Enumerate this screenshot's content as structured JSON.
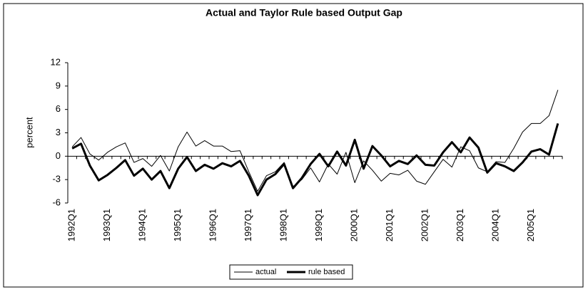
{
  "chart_data": {
    "type": "line",
    "title": "Actual and Taylor Rule based Output Gap",
    "y_label": "percent",
    "categories": [
      "1992Q1",
      null,
      null,
      null,
      "1993Q1",
      null,
      null,
      null,
      "1994Q1",
      null,
      null,
      null,
      "1995Q1",
      null,
      null,
      null,
      "1996Q1",
      null,
      null,
      null,
      "1997Q1",
      null,
      null,
      null,
      "1998Q1",
      null,
      null,
      null,
      "1999Q1",
      null,
      null,
      null,
      "2000Q1",
      null,
      null,
      null,
      "2001Q1",
      null,
      null,
      null,
      "2002Q1",
      null,
      null,
      null,
      "2003Q1",
      null,
      null,
      null,
      "2004Q1",
      null,
      null,
      null,
      "2005Q1",
      null,
      null,
      null
    ],
    "series": [
      {
        "name": "actual",
        "color": "#000000",
        "width": 1,
        "values": [
          1.2,
          2.4,
          0.3,
          -0.5,
          0.5,
          1.2,
          1.7,
          -0.8,
          -0.3,
          -1.3,
          0.1,
          -1.9,
          1.2,
          3.1,
          1.3,
          2.0,
          1.3,
          1.3,
          0.6,
          0.7,
          -2.0,
          -4.5,
          -2.5,
          -2.0,
          -0.8,
          -3.9,
          -3.0,
          -1.5,
          -3.3,
          -1.0,
          -2.3,
          0.5,
          -3.4,
          -0.6,
          -1.8,
          -3.2,
          -2.2,
          -2.4,
          -1.8,
          -3.2,
          -3.6,
          -2.0,
          -0.4,
          -1.4,
          1.2,
          0.7,
          -1.5,
          -2.0,
          -0.7,
          -0.8,
          1.0,
          3.1,
          4.2,
          4.2,
          5.2,
          8.5
        ]
      },
      {
        "name": "rule based",
        "color": "#000000",
        "width": 3,
        "values": [
          1.0,
          1.6,
          -1.2,
          -3.1,
          -2.4,
          -1.5,
          -0.5,
          -2.5,
          -1.6,
          -3.0,
          -1.9,
          -4.1,
          -1.6,
          -0.1,
          -1.9,
          -1.1,
          -1.6,
          -0.9,
          -1.3,
          -0.6,
          -2.5,
          -5.0,
          -3.0,
          -2.3,
          -1.0,
          -4.1,
          -2.8,
          -1.0,
          0.3,
          -1.3,
          0.6,
          -1.2,
          2.1,
          -1.6,
          1.3,
          0.1,
          -1.3,
          -0.6,
          -1.0,
          0.1,
          -1.1,
          -1.2,
          0.5,
          1.8,
          0.5,
          2.4,
          1.1,
          -2.1,
          -0.9,
          -1.3,
          -1.9,
          -0.8,
          0.6,
          0.9,
          0.2,
          4.2
        ]
      }
    ],
    "ylim": [
      -6,
      12
    ],
    "yticks": [
      -6,
      -3,
      0,
      3,
      6,
      9,
      12
    ],
    "legend": "bottom"
  }
}
